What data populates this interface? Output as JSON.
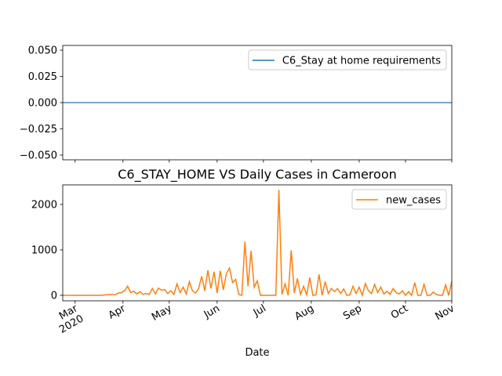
{
  "chart_data": [
    {
      "type": "line",
      "x": [
        0,
        2,
        4,
        6,
        8,
        10,
        12,
        14,
        16,
        18,
        20,
        22,
        24,
        26,
        28,
        30,
        32,
        34,
        36,
        38,
        40,
        42,
        44,
        46,
        48,
        50,
        52,
        54,
        56,
        58,
        60,
        62,
        64,
        66,
        68,
        70,
        72,
        74,
        76,
        78,
        80,
        82,
        84,
        86,
        88,
        90,
        92,
        94,
        96,
        98,
        100,
        102,
        104,
        106,
        108,
        110,
        112,
        114,
        116,
        118,
        120,
        122,
        124,
        126,
        128,
        130,
        132,
        134,
        136,
        138,
        140,
        142,
        144,
        146,
        148,
        150,
        152,
        154,
        156,
        158,
        160,
        162,
        164,
        166,
        168,
        170,
        172,
        174,
        176,
        178,
        180,
        182,
        184,
        186,
        188,
        190,
        192,
        194,
        196,
        198,
        200,
        202,
        204,
        206,
        208,
        210,
        212,
        214,
        216,
        218,
        220,
        222,
        224,
        226,
        228,
        230,
        232,
        234,
        236,
        238,
        240,
        242,
        244,
        246,
        248,
        250,
        252
      ],
      "series": [
        {
          "name": "C6_Stay at home requirements",
          "color": "#1f77b4",
          "values": [
            0,
            0,
            0,
            0,
            0,
            0,
            0,
            0,
            0,
            0,
            0,
            0,
            0,
            0,
            0,
            0,
            0,
            0,
            0,
            0,
            0,
            0,
            0,
            0,
            0,
            0,
            0,
            0,
            0,
            0,
            0,
            0,
            0,
            0,
            0,
            0,
            0,
            0,
            0,
            0,
            0,
            0,
            0,
            0,
            0,
            0,
            0,
            0,
            0,
            0,
            0,
            0,
            0,
            0,
            0,
            0,
            0,
            0,
            0,
            0,
            0,
            0,
            0,
            0,
            0,
            0,
            0,
            0,
            0,
            0,
            0,
            0,
            0,
            0,
            0,
            0,
            0,
            0,
            0,
            0,
            0,
            0,
            0,
            0,
            0,
            0,
            0,
            0,
            0,
            0,
            0,
            0,
            0,
            0,
            0,
            0,
            0,
            0,
            0,
            0,
            0,
            0,
            0,
            0,
            0,
            0,
            0,
            0,
            0,
            0,
            0,
            0,
            0,
            0,
            0,
            0,
            0,
            0,
            0,
            0,
            0,
            0,
            0,
            0,
            0,
            0,
            0
          ]
        }
      ],
      "xlim": [
        0,
        252
      ],
      "xticks": [
        8,
        39,
        69,
        100,
        130,
        161,
        192,
        222,
        252
      ],
      "ylim": [
        -0.0545,
        0.0545
      ],
      "yticks": [
        {
          "value": -0.05,
          "label": "−0.050"
        },
        {
          "value": -0.025,
          "label": "−0.025"
        },
        {
          "value": 0,
          "label": "0.000"
        },
        {
          "value": 0.025,
          "label": "0.025"
        },
        {
          "value": 0.05,
          "label": "0.050"
        }
      ],
      "legend": "upper right"
    },
    {
      "type": "line",
      "title": "C6_STAY_HOME VS Daily Cases in Cameroon",
      "x_label": "Date",
      "x": [
        0,
        2,
        4,
        6,
        8,
        10,
        12,
        14,
        16,
        18,
        20,
        22,
        24,
        26,
        28,
        30,
        32,
        34,
        36,
        38,
        40,
        42,
        44,
        46,
        48,
        50,
        52,
        54,
        56,
        58,
        60,
        62,
        64,
        66,
        68,
        70,
        72,
        74,
        76,
        78,
        80,
        82,
        84,
        86,
        88,
        90,
        92,
        94,
        96,
        98,
        100,
        102,
        104,
        106,
        108,
        110,
        112,
        114,
        116,
        118,
        120,
        122,
        124,
        126,
        128,
        130,
        132,
        134,
        136,
        138,
        140,
        142,
        144,
        146,
        148,
        150,
        152,
        154,
        156,
        158,
        160,
        162,
        164,
        166,
        168,
        170,
        172,
        174,
        176,
        178,
        180,
        182,
        184,
        186,
        188,
        190,
        192,
        194,
        196,
        198,
        200,
        202,
        204,
        206,
        208,
        210,
        212,
        214,
        216,
        218,
        220,
        222,
        224,
        226,
        228,
        230,
        232,
        234,
        236,
        238,
        240,
        242,
        244,
        246,
        248,
        250,
        252
      ],
      "series": [
        {
          "name": "new_cases",
          "color": "#ff7f0e",
          "values": [
            0,
            0,
            0,
            0,
            0,
            0,
            0,
            0,
            0,
            0,
            0,
            0,
            0,
            5,
            10,
            15,
            20,
            10,
            50,
            60,
            100,
            200,
            60,
            90,
            30,
            80,
            20,
            40,
            20,
            150,
            30,
            160,
            110,
            130,
            40,
            100,
            20,
            250,
            60,
            180,
            30,
            300,
            100,
            50,
            150,
            420,
            100,
            550,
            150,
            520,
            50,
            540,
            120,
            480,
            600,
            280,
            350,
            20,
            0,
            1180,
            200,
            980,
            180,
            320,
            0,
            0,
            0,
            0,
            0,
            0,
            2320,
            20,
            250,
            0,
            990,
            50,
            370,
            20,
            200,
            10,
            390,
            0,
            10,
            460,
            0,
            300,
            40,
            150,
            80,
            150,
            40,
            140,
            0,
            10,
            200,
            40,
            180,
            0,
            260,
            100,
            40,
            240,
            60,
            180,
            30,
            90,
            20,
            150,
            60,
            30,
            100,
            0,
            80,
            0,
            280,
            0,
            0,
            240,
            0,
            0,
            70,
            20,
            0,
            0,
            230,
            0,
            310
          ]
        }
      ],
      "xlim": [
        0,
        252
      ],
      "xticks": [
        {
          "value": 8,
          "label": "Mar\n2020"
        },
        {
          "value": 39,
          "label": "Apr"
        },
        {
          "value": 69,
          "label": "May"
        },
        {
          "value": 100,
          "label": "Jun"
        },
        {
          "value": 130,
          "label": "Jul"
        },
        {
          "value": 161,
          "label": "Aug"
        },
        {
          "value": 192,
          "label": "Sep"
        },
        {
          "value": 222,
          "label": "Oct"
        },
        {
          "value": 252,
          "label": "Nov"
        }
      ],
      "ylim": [
        -121,
        2431
      ],
      "yticks": [
        0,
        1000,
        2000
      ],
      "legend": "upper right"
    }
  ]
}
